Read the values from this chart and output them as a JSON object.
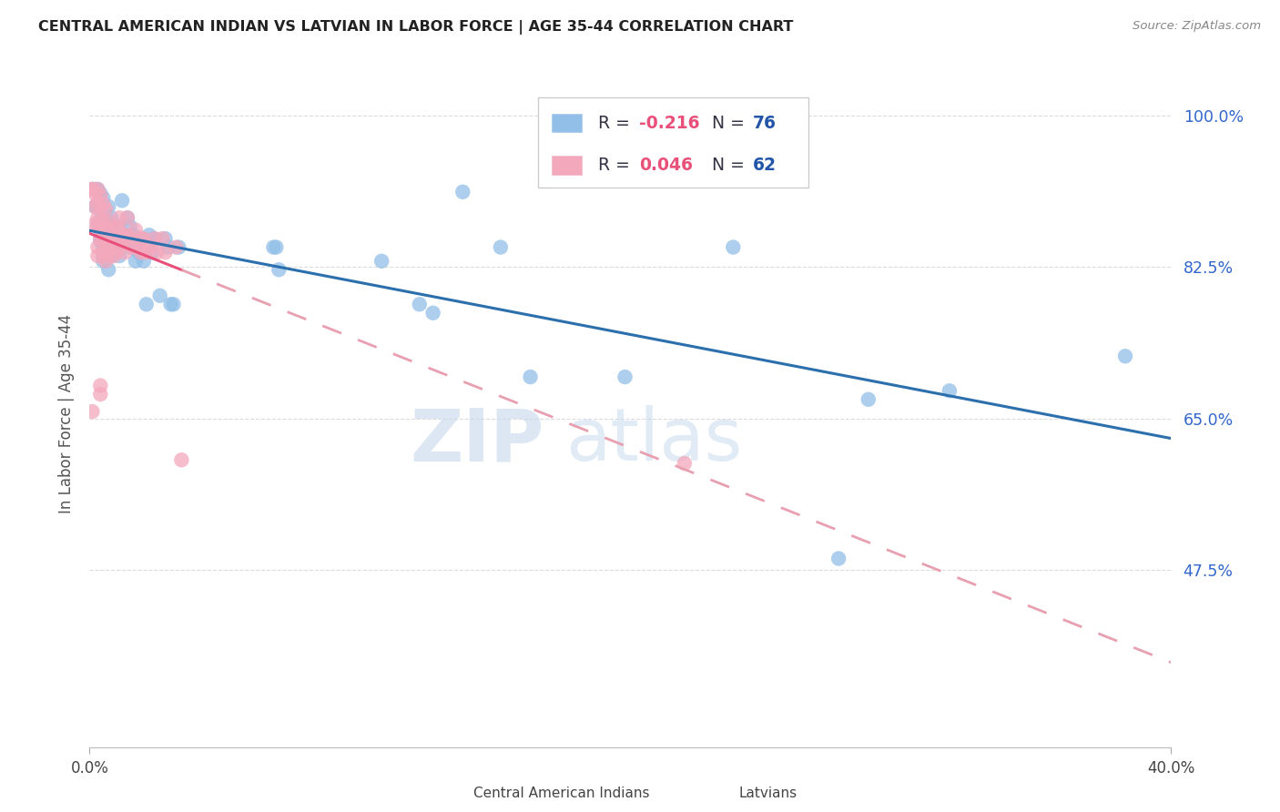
{
  "title": "CENTRAL AMERICAN INDIAN VS LATVIAN IN LABOR FORCE | AGE 35-44 CORRELATION CHART",
  "source": "Source: ZipAtlas.com",
  "ylabel": "In Labor Force | Age 35-44",
  "xlim": [
    0.0,
    0.4
  ],
  "ylim": [
    0.27,
    1.04
  ],
  "ytick_vals": [
    0.475,
    0.65,
    0.825,
    1.0
  ],
  "ytick_labels": [
    "47.5%",
    "65.0%",
    "82.5%",
    "100.0%"
  ],
  "xtick_vals": [
    0.0,
    0.4
  ],
  "xtick_labels": [
    "0.0%",
    "40.0%"
  ],
  "blue_color": "#92bfe8",
  "pink_color": "#f4a8bc",
  "trendline_blue_color": "#2c6fad",
  "trendline_pink_solid_color": "#e8507a",
  "trendline_pink_dashed_color": "#e8a0b0",
  "legend_blue_r": "-0.216",
  "legend_blue_n": "76",
  "legend_pink_r": "0.046",
  "legend_pink_n": "62",
  "legend_text_color": "#333344",
  "legend_num_color": "#2255aa",
  "legend_r_neg_color": "#e8507a",
  "legend_r_pos_color": "#e8507a",
  "ytick_color": "#3366cc",
  "watermark_color": "#d0dff0",
  "blue_scatter": [
    [
      0.001,
      0.915
    ],
    [
      0.002,
      0.915
    ],
    [
      0.002,
      0.895
    ],
    [
      0.003,
      0.915
    ],
    [
      0.003,
      0.895
    ],
    [
      0.003,
      0.875
    ],
    [
      0.004,
      0.91
    ],
    [
      0.004,
      0.89
    ],
    [
      0.004,
      0.875
    ],
    [
      0.004,
      0.86
    ],
    [
      0.004,
      0.855
    ],
    [
      0.005,
      0.905
    ],
    [
      0.005,
      0.89
    ],
    [
      0.005,
      0.875
    ],
    [
      0.005,
      0.862
    ],
    [
      0.005,
      0.852
    ],
    [
      0.005,
      0.845
    ],
    [
      0.005,
      0.838
    ],
    [
      0.005,
      0.832
    ],
    [
      0.006,
      0.88
    ],
    [
      0.006,
      0.868
    ],
    [
      0.006,
      0.852
    ],
    [
      0.006,
      0.84
    ],
    [
      0.007,
      0.895
    ],
    [
      0.007,
      0.878
    ],
    [
      0.007,
      0.862
    ],
    [
      0.007,
      0.85
    ],
    [
      0.007,
      0.838
    ],
    [
      0.007,
      0.822
    ],
    [
      0.008,
      0.882
    ],
    [
      0.008,
      0.862
    ],
    [
      0.008,
      0.852
    ],
    [
      0.008,
      0.838
    ],
    [
      0.009,
      0.872
    ],
    [
      0.009,
      0.858
    ],
    [
      0.009,
      0.842
    ],
    [
      0.011,
      0.872
    ],
    [
      0.011,
      0.852
    ],
    [
      0.011,
      0.838
    ],
    [
      0.012,
      0.902
    ],
    [
      0.013,
      0.862
    ],
    [
      0.014,
      0.882
    ],
    [
      0.015,
      0.872
    ],
    [
      0.015,
      0.848
    ],
    [
      0.016,
      0.862
    ],
    [
      0.017,
      0.848
    ],
    [
      0.017,
      0.832
    ],
    [
      0.018,
      0.842
    ],
    [
      0.019,
      0.858
    ],
    [
      0.019,
      0.842
    ],
    [
      0.02,
      0.832
    ],
    [
      0.021,
      0.782
    ],
    [
      0.022,
      0.862
    ],
    [
      0.023,
      0.842
    ],
    [
      0.024,
      0.858
    ],
    [
      0.026,
      0.792
    ],
    [
      0.028,
      0.858
    ],
    [
      0.029,
      0.848
    ],
    [
      0.03,
      0.782
    ],
    [
      0.031,
      0.782
    ],
    [
      0.033,
      0.848
    ],
    [
      0.068,
      0.848
    ],
    [
      0.069,
      0.848
    ],
    [
      0.07,
      0.822
    ],
    [
      0.108,
      0.832
    ],
    [
      0.122,
      0.782
    ],
    [
      0.127,
      0.772
    ],
    [
      0.138,
      0.912
    ],
    [
      0.152,
      0.848
    ],
    [
      0.163,
      0.698
    ],
    [
      0.198,
      0.698
    ],
    [
      0.238,
      0.848
    ],
    [
      0.277,
      0.488
    ],
    [
      0.288,
      0.672
    ],
    [
      0.318,
      0.682
    ],
    [
      0.383,
      0.722
    ]
  ],
  "pink_scatter": [
    [
      0.001,
      0.915
    ],
    [
      0.001,
      0.915
    ],
    [
      0.002,
      0.91
    ],
    [
      0.002,
      0.895
    ],
    [
      0.002,
      0.875
    ],
    [
      0.003,
      0.915
    ],
    [
      0.003,
      0.9
    ],
    [
      0.003,
      0.882
    ],
    [
      0.003,
      0.872
    ],
    [
      0.003,
      0.848
    ],
    [
      0.003,
      0.838
    ],
    [
      0.004,
      0.908
    ],
    [
      0.004,
      0.892
    ],
    [
      0.004,
      0.872
    ],
    [
      0.004,
      0.858
    ],
    [
      0.004,
      0.688
    ],
    [
      0.004,
      0.678
    ],
    [
      0.005,
      0.898
    ],
    [
      0.005,
      0.878
    ],
    [
      0.005,
      0.858
    ],
    [
      0.005,
      0.842
    ],
    [
      0.005,
      0.838
    ],
    [
      0.006,
      0.892
    ],
    [
      0.006,
      0.872
    ],
    [
      0.006,
      0.848
    ],
    [
      0.006,
      0.832
    ],
    [
      0.007,
      0.878
    ],
    [
      0.007,
      0.848
    ],
    [
      0.007,
      0.838
    ],
    [
      0.008,
      0.868
    ],
    [
      0.008,
      0.848
    ],
    [
      0.009,
      0.858
    ],
    [
      0.009,
      0.838
    ],
    [
      0.01,
      0.872
    ],
    [
      0.01,
      0.858
    ],
    [
      0.01,
      0.842
    ],
    [
      0.011,
      0.882
    ],
    [
      0.011,
      0.868
    ],
    [
      0.011,
      0.848
    ],
    [
      0.012,
      0.862
    ],
    [
      0.013,
      0.858
    ],
    [
      0.013,
      0.842
    ],
    [
      0.014,
      0.882
    ],
    [
      0.014,
      0.862
    ],
    [
      0.015,
      0.858
    ],
    [
      0.016,
      0.848
    ],
    [
      0.017,
      0.868
    ],
    [
      0.018,
      0.848
    ],
    [
      0.019,
      0.858
    ],
    [
      0.019,
      0.842
    ],
    [
      0.02,
      0.858
    ],
    [
      0.021,
      0.842
    ],
    [
      0.022,
      0.848
    ],
    [
      0.023,
      0.848
    ],
    [
      0.024,
      0.858
    ],
    [
      0.025,
      0.842
    ],
    [
      0.027,
      0.858
    ],
    [
      0.028,
      0.842
    ],
    [
      0.032,
      0.848
    ],
    [
      0.034,
      0.602
    ],
    [
      0.001,
      0.658
    ],
    [
      0.22,
      0.598
    ]
  ],
  "background_color": "#ffffff",
  "grid_color": "#d8d8d8"
}
